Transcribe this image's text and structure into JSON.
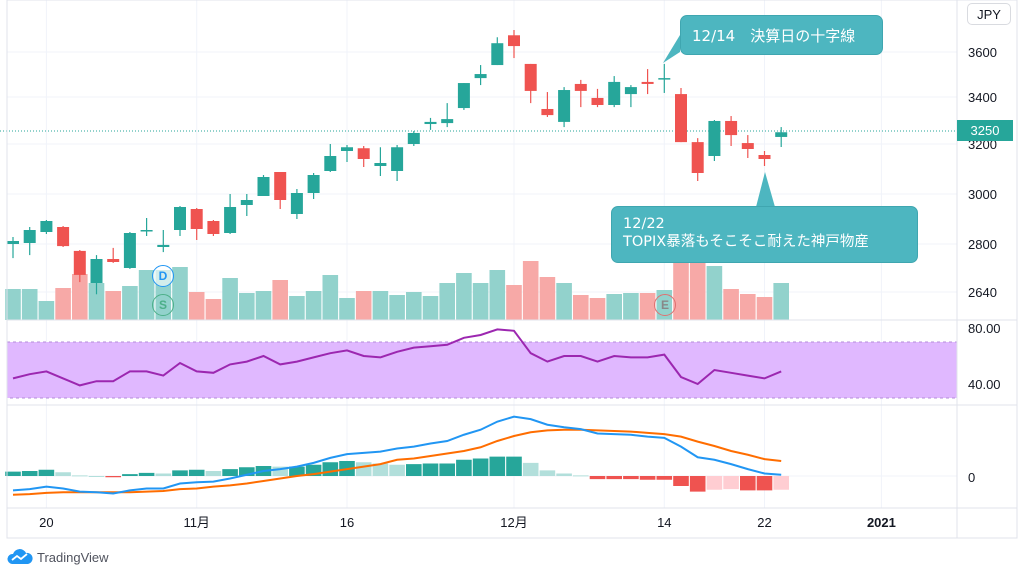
{
  "header": {
    "currency_button": "JPY"
  },
  "price_axis": {
    "ticks": [
      3600,
      3400,
      3200,
      3000,
      2800,
      2640
    ],
    "last_price": "3250",
    "last_price_value": 3250
  },
  "rsi_axis": {
    "ticks": [
      "80.00",
      "40.00"
    ],
    "band_upper": 70,
    "band_lower": 30
  },
  "macd_axis": {
    "ticks": [
      "0"
    ]
  },
  "time_axis": {
    "labels": [
      {
        "text": "20",
        "bar": 2
      },
      {
        "text": "11月",
        "bar": 11
      },
      {
        "text": "16",
        "bar": 20
      },
      {
        "text": "12月",
        "bar": 30
      },
      {
        "text": "14",
        "bar": 39
      },
      {
        "text": "22",
        "bar": 45
      },
      {
        "text": "2021",
        "bar": 52,
        "bold": true
      }
    ]
  },
  "markers": {
    "dividend": "D",
    "split": "S",
    "earnings": "E"
  },
  "annotations": {
    "top": "12/14　決算日の十字線",
    "bottom_line1": "12/22",
    "bottom_line2": "TOPIX暴落もそこそこ耐えた神戸物産"
  },
  "branding": {
    "logo_text": "TradingView"
  },
  "colors": {
    "up": "#26a69a",
    "down": "#ef5350",
    "rsi": "#9c27b0",
    "rsi_band": "#e0b8ff",
    "macd": "#2196f3",
    "signal": "#ff6d00",
    "callout": "#4db6c0"
  },
  "chart_data": {
    "type": "candlestick",
    "candles": [
      [
        2800,
        2828,
        2753,
        2812
      ],
      [
        2804,
        2868,
        2763,
        2856
      ],
      [
        2848,
        2896,
        2840,
        2892
      ],
      [
        2868,
        2872,
        2790,
        2793
      ],
      [
        2777,
        2780,
        2673,
        2697
      ],
      [
        2670,
        2763,
        2633,
        2750
      ],
      [
        2750,
        2787,
        2737,
        2740
      ],
      [
        2720,
        2848,
        2717,
        2844
      ],
      [
        2852,
        2904,
        2832,
        2856
      ],
      [
        2790,
        2856,
        2773,
        2797
      ],
      [
        2856,
        2952,
        2832,
        2948
      ],
      [
        2940,
        2944,
        2816,
        2860
      ],
      [
        2892,
        2896,
        2832,
        2840
      ],
      [
        2844,
        3000,
        2840,
        2948
      ],
      [
        2956,
        3000,
        2912,
        2976
      ],
      [
        2992,
        3076,
        2992,
        3068
      ],
      [
        3088,
        3088,
        2940,
        2976
      ],
      [
        2920,
        3020,
        2900,
        3004
      ],
      [
        3004,
        3084,
        2980,
        3076
      ],
      [
        3092,
        3200,
        3088,
        3152
      ],
      [
        3172,
        3196,
        3128,
        3187
      ],
      [
        3183,
        3192,
        3108,
        3140
      ],
      [
        3112,
        3187,
        3072,
        3124
      ],
      [
        3092,
        3196,
        3052,
        3187
      ],
      [
        3200,
        3255,
        3192,
        3247
      ],
      [
        3285,
        3311,
        3260,
        3294
      ],
      [
        3289,
        3374,
        3272,
        3306
      ],
      [
        3353,
        3462,
        3345,
        3462
      ],
      [
        3484,
        3542,
        3453,
        3502
      ],
      [
        3542,
        3667,
        3542,
        3640
      ],
      [
        3676,
        3707,
        3573,
        3627
      ],
      [
        3547,
        3547,
        3374,
        3427
      ],
      [
        3349,
        3422,
        3315,
        3323
      ],
      [
        3294,
        3444,
        3272,
        3431
      ],
      [
        3458,
        3476,
        3357,
        3427
      ],
      [
        3396,
        3436,
        3357,
        3366
      ],
      [
        3366,
        3493,
        3357,
        3467
      ],
      [
        3413,
        3453,
        3357,
        3444
      ],
      [
        3467,
        3524,
        3413,
        3458
      ],
      [
        3482,
        3547,
        3418,
        3484
      ],
      [
        3413,
        3440,
        3208,
        3208
      ],
      [
        3208,
        3225,
        3052,
        3084
      ],
      [
        3152,
        3302,
        3132,
        3298
      ],
      [
        3298,
        3319,
        3192,
        3238
      ],
      [
        3204,
        3238,
        3144,
        3180
      ],
      [
        3156,
        3172,
        3112,
        3140
      ],
      [
        3230,
        3272,
        3188,
        3250
      ]
    ],
    "volume": [
      31,
      31,
      19,
      32,
      46,
      37,
      29,
      34,
      50,
      50,
      53,
      28,
      21,
      42,
      27,
      29,
      40,
      24,
      29,
      45,
      22,
      29,
      29,
      25,
      28,
      24,
      37,
      47,
      37,
      50,
      35,
      59,
      43,
      37,
      25,
      22,
      26,
      27,
      27,
      30,
      80,
      59,
      54,
      31,
      26,
      23,
      37
    ],
    "rsi": [
      44,
      47,
      49,
      44,
      39,
      42,
      42,
      49,
      49,
      46,
      55,
      49,
      48,
      54,
      56,
      60,
      54,
      56,
      59,
      62,
      64,
      60,
      59,
      63,
      66,
      67,
      68,
      73,
      75,
      79,
      78,
      62,
      56,
      60,
      60,
      56,
      60,
      59,
      59,
      61,
      45,
      40,
      50,
      48,
      46,
      44,
      49
    ],
    "macd": [
      -23,
      -21,
      -17,
      -20,
      -25,
      -26,
      -28,
      -23,
      -20,
      -20,
      -12,
      -10,
      -9,
      -4,
      2,
      8,
      11,
      15,
      21,
      29,
      35,
      37,
      39,
      44,
      47,
      52,
      56,
      66,
      74,
      87,
      95,
      91,
      82,
      78,
      75,
      68,
      67,
      66,
      63,
      61,
      47,
      30,
      26,
      19,
      11,
      4,
      2
    ],
    "signal": [
      -30,
      -29,
      -27,
      -26,
      -26,
      -26,
      -26,
      -26,
      -25,
      -24,
      -21,
      -20,
      -17,
      -15,
      -12,
      -8,
      -4,
      0,
      3,
      7,
      11,
      15,
      19,
      26,
      28,
      32,
      36,
      40,
      46,
      56,
      64,
      70,
      73,
      74,
      74,
      73,
      72,
      71,
      69,
      67,
      63,
      55,
      48,
      40,
      34,
      27,
      24
    ],
    "dividend_bar": 9,
    "split_bar": 9,
    "earnings_bar": 39
  }
}
